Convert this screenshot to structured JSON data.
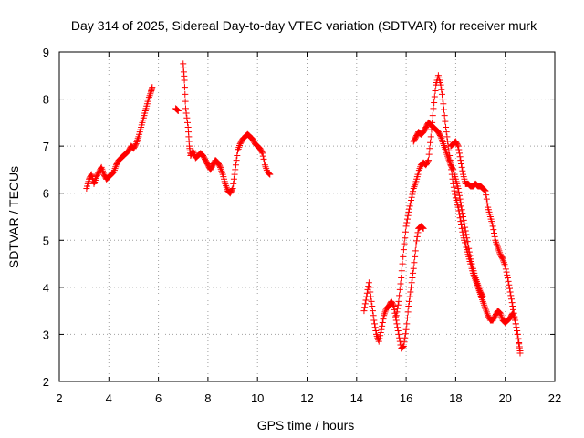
{
  "chart_data": {
    "type": "scatter",
    "title": "Day 314 of 2025, Sidereal Day-to-day VTEC variation (SDTVAR) for receiver murk",
    "xlabel": "GPS time / hours",
    "ylabel": "SDTVAR / TECUs",
    "xlim": [
      2,
      22
    ],
    "ylim": [
      2,
      9
    ],
    "xticks": [
      "2",
      "4",
      "6",
      "8",
      "10",
      "12",
      "14",
      "16",
      "18",
      "20",
      "22"
    ],
    "yticks": [
      "2",
      "3",
      "4",
      "5",
      "6",
      "7",
      "8",
      "9"
    ],
    "grid": true,
    "marker": "+",
    "color": "#ff0000",
    "series": [
      {
        "name": "SDTVAR",
        "segments": [
          [
            [
              3.1,
              6.1
            ],
            [
              3.2,
              6.3
            ],
            [
              3.3,
              6.4
            ],
            [
              3.4,
              6.2
            ],
            [
              3.5,
              6.35
            ],
            [
              3.6,
              6.45
            ],
            [
              3.7,
              6.55
            ],
            [
              3.8,
              6.4
            ],
            [
              3.9,
              6.3
            ],
            [
              4.0,
              6.35
            ],
            [
              4.1,
              6.4
            ],
            [
              4.2,
              6.45
            ],
            [
              4.3,
              6.6
            ],
            [
              4.4,
              6.7
            ],
            [
              4.5,
              6.75
            ],
            [
              4.6,
              6.8
            ],
            [
              4.7,
              6.85
            ],
            [
              4.8,
              6.9
            ],
            [
              4.9,
              7.0
            ],
            [
              5.0,
              6.95
            ],
            [
              5.1,
              7.05
            ],
            [
              5.2,
              7.2
            ],
            [
              5.3,
              7.4
            ],
            [
              5.4,
              7.6
            ],
            [
              5.5,
              7.8
            ],
            [
              5.6,
              8.0
            ],
            [
              5.7,
              8.15
            ],
            [
              5.75,
              8.25
            ]
          ],
          [
            [
              6.7,
              7.8
            ],
            [
              6.8,
              7.75
            ]
          ],
          [
            [
              7.0,
              8.75
            ],
            [
              7.05,
              8.4
            ],
            [
              7.1,
              7.8
            ],
            [
              7.2,
              7.4
            ],
            [
              7.25,
              7.0
            ],
            [
              7.3,
              6.8
            ],
            [
              7.4,
              6.9
            ],
            [
              7.5,
              6.75
            ],
            [
              7.6,
              6.8
            ],
            [
              7.7,
              6.85
            ],
            [
              7.8,
              6.8
            ],
            [
              7.9,
              6.7
            ],
            [
              8.0,
              6.6
            ],
            [
              8.1,
              6.5
            ],
            [
              8.2,
              6.6
            ],
            [
              8.3,
              6.7
            ],
            [
              8.4,
              6.65
            ],
            [
              8.5,
              6.55
            ],
            [
              8.6,
              6.4
            ],
            [
              8.7,
              6.2
            ],
            [
              8.8,
              6.05
            ],
            [
              8.9,
              6.0
            ],
            [
              9.0,
              6.1
            ],
            [
              9.1,
              6.5
            ],
            [
              9.2,
              6.9
            ],
            [
              9.3,
              7.05
            ],
            [
              9.4,
              7.15
            ],
            [
              9.5,
              7.2
            ],
            [
              9.6,
              7.25
            ],
            [
              9.7,
              7.2
            ],
            [
              9.8,
              7.15
            ],
            [
              9.9,
              7.05
            ],
            [
              10.0,
              7.0
            ],
            [
              10.1,
              6.95
            ],
            [
              10.2,
              6.85
            ],
            [
              10.3,
              6.6
            ],
            [
              10.4,
              6.45
            ],
            [
              10.5,
              6.4
            ]
          ],
          [
            [
              14.3,
              3.5
            ],
            [
              14.4,
              3.8
            ],
            [
              14.5,
              4.1
            ],
            [
              14.6,
              3.7
            ],
            [
              14.7,
              3.3
            ],
            [
              14.8,
              3.0
            ],
            [
              14.9,
              2.85
            ],
            [
              15.0,
              3.1
            ],
            [
              15.1,
              3.4
            ],
            [
              15.2,
              3.55
            ],
            [
              15.3,
              3.6
            ],
            [
              15.4,
              3.7
            ],
            [
              15.5,
              3.6
            ],
            [
              15.6,
              3.3
            ],
            [
              15.7,
              3.0
            ],
            [
              15.8,
              2.7
            ],
            [
              15.9,
              2.75
            ],
            [
              16.0,
              3.1
            ],
            [
              16.1,
              3.6
            ],
            [
              16.2,
              4.0
            ],
            [
              16.3,
              4.4
            ],
            [
              16.4,
              4.9
            ],
            [
              16.5,
              5.25
            ],
            [
              16.6,
              5.3
            ],
            [
              16.7,
              5.25
            ]
          ],
          [
            [
              15.6,
              3.4
            ],
            [
              15.7,
              3.7
            ],
            [
              15.8,
              4.2
            ],
            [
              15.9,
              4.8
            ],
            [
              16.0,
              5.3
            ],
            [
              16.1,
              5.6
            ],
            [
              16.2,
              5.85
            ],
            [
              16.3,
              6.1
            ],
            [
              16.4,
              6.25
            ],
            [
              16.5,
              6.45
            ],
            [
              16.6,
              6.6
            ],
            [
              16.7,
              6.65
            ],
            [
              16.8,
              6.6
            ],
            [
              16.9,
              6.7
            ],
            [
              17.0,
              7.2
            ],
            [
              17.1,
              7.8
            ],
            [
              17.2,
              8.3
            ],
            [
              17.3,
              8.5
            ],
            [
              17.4,
              8.3
            ],
            [
              17.5,
              7.9
            ],
            [
              17.6,
              7.4
            ],
            [
              17.7,
              7.0
            ],
            [
              17.8,
              6.6
            ],
            [
              17.9,
              6.2
            ],
            [
              18.0,
              5.9
            ],
            [
              18.1,
              5.7
            ],
            [
              18.2,
              5.4
            ],
            [
              18.3,
              5.1
            ],
            [
              18.4,
              4.9
            ],
            [
              18.5,
              4.7
            ],
            [
              18.6,
              4.5
            ],
            [
              18.7,
              4.3
            ],
            [
              18.8,
              4.15
            ],
            [
              18.9,
              4.0
            ],
            [
              19.0,
              3.85
            ],
            [
              19.1,
              3.7
            ],
            [
              19.2,
              3.55
            ],
            [
              19.3,
              3.4
            ],
            [
              19.4,
              3.3
            ],
            [
              19.5,
              3.3
            ],
            [
              19.6,
              3.4
            ],
            [
              19.7,
              3.5
            ],
            [
              19.8,
              3.45
            ],
            [
              19.9,
              3.3
            ],
            [
              20.0,
              3.25
            ],
            [
              20.1,
              3.3
            ],
            [
              20.2,
              3.35
            ],
            [
              20.3,
              3.45
            ],
            [
              20.4,
              3.3
            ],
            [
              20.5,
              3.0
            ],
            [
              20.6,
              2.6
            ]
          ],
          [
            [
              16.3,
              7.1
            ],
            [
              16.4,
              7.2
            ],
            [
              16.5,
              7.3
            ],
            [
              16.6,
              7.25
            ],
            [
              16.7,
              7.3
            ],
            [
              16.8,
              7.4
            ],
            [
              16.9,
              7.5
            ],
            [
              17.0,
              7.45
            ],
            [
              17.1,
              7.4
            ],
            [
              17.2,
              7.35
            ],
            [
              17.3,
              7.3
            ],
            [
              17.4,
              7.2
            ],
            [
              17.5,
              7.05
            ],
            [
              17.6,
              6.9
            ],
            [
              17.7,
              6.75
            ],
            [
              17.8,
              6.6
            ],
            [
              17.9,
              6.5
            ],
            [
              18.0,
              6.3
            ],
            [
              18.1,
              6.1
            ],
            [
              18.2,
              5.8
            ],
            [
              18.3,
              5.5
            ],
            [
              18.4,
              5.2
            ],
            [
              18.5,
              4.9
            ],
            [
              18.6,
              4.6
            ],
            [
              18.7,
              4.4
            ],
            [
              18.8,
              4.2
            ],
            [
              18.9,
              4.05
            ],
            [
              19.0,
              3.9
            ],
            [
              19.1,
              3.8
            ]
          ],
          [
            [
              17.8,
              7.0
            ],
            [
              17.9,
              7.05
            ],
            [
              18.0,
              7.1
            ],
            [
              18.1,
              7.0
            ],
            [
              18.2,
              6.7
            ],
            [
              18.3,
              6.4
            ],
            [
              18.4,
              6.2
            ],
            [
              18.5,
              6.2
            ],
            [
              18.6,
              6.15
            ],
            [
              18.7,
              6.15
            ],
            [
              18.8,
              6.2
            ],
            [
              18.9,
              6.15
            ],
            [
              19.0,
              6.15
            ],
            [
              19.1,
              6.1
            ],
            [
              19.2,
              6.05
            ],
            [
              19.3,
              5.7
            ],
            [
              19.4,
              5.5
            ],
            [
              19.5,
              5.3
            ],
            [
              19.6,
              5.0
            ],
            [
              19.7,
              4.85
            ],
            [
              19.8,
              4.7
            ],
            [
              19.9,
              4.6
            ],
            [
              20.0,
              4.45
            ],
            [
              20.1,
              4.2
            ],
            [
              20.2,
              3.9
            ],
            [
              20.3,
              3.6
            ],
            [
              20.4,
              3.3
            ],
            [
              20.5,
              3.0
            ],
            [
              20.6,
              2.65
            ]
          ]
        ]
      }
    ]
  }
}
